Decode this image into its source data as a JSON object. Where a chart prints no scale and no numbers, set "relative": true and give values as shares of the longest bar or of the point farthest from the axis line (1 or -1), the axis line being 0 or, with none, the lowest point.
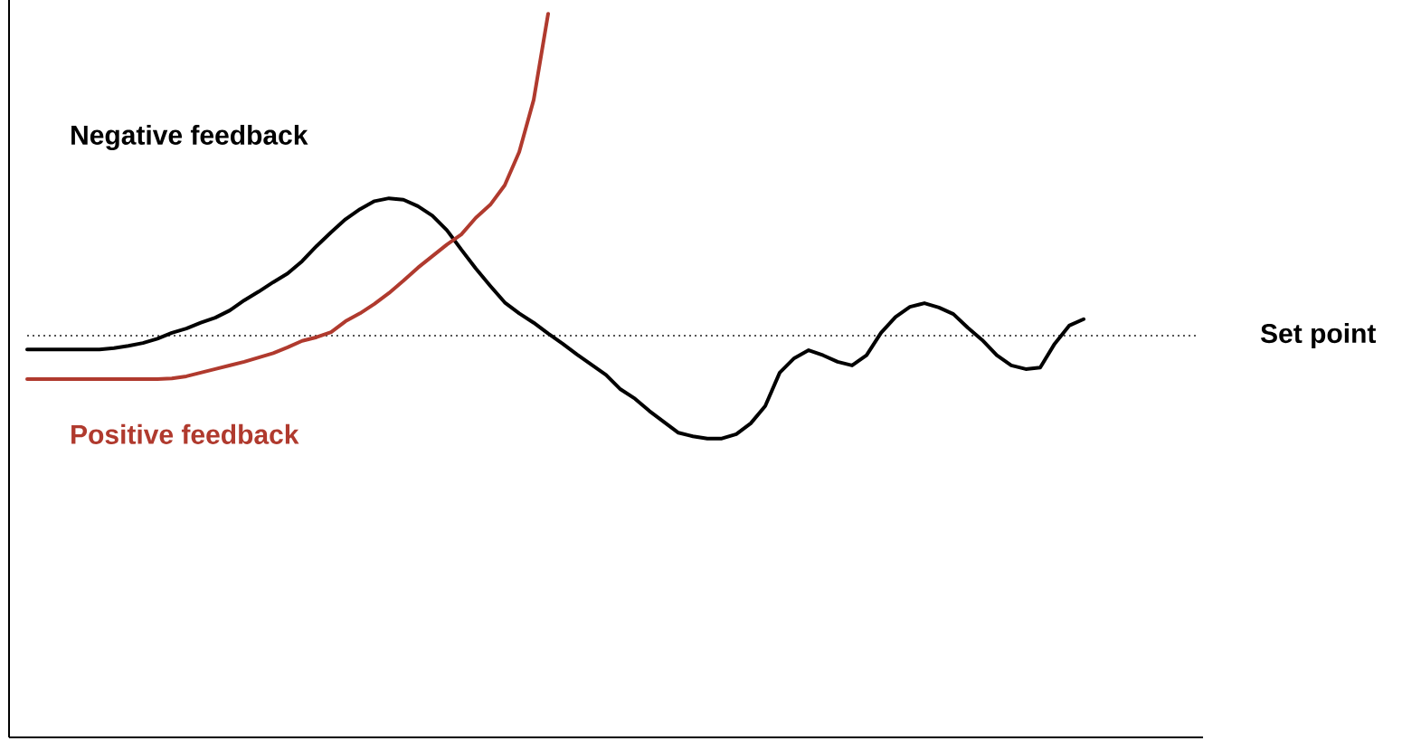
{
  "chart_data": {
    "type": "line",
    "relative": true,
    "legend": false,
    "marker": "none",
    "line_style": "solid",
    "categories": [
      null,
      null,
      null,
      null,
      null,
      null,
      null,
      null,
      null,
      null,
      null,
      null,
      null,
      null,
      null,
      null,
      null,
      null,
      null,
      null,
      null,
      null,
      null,
      null,
      null,
      null,
      null,
      null,
      null,
      null,
      null,
      null,
      null,
      null,
      null,
      null,
      null,
      null,
      null,
      null,
      null,
      null,
      null,
      null,
      null,
      null,
      null,
      null,
      null,
      null,
      null,
      null,
      null,
      null,
      null,
      null,
      null,
      null,
      null,
      null,
      null,
      null,
      null,
      null,
      null,
      null,
      null,
      null,
      null,
      null,
      null,
      null,
      null,
      null
    ],
    "series": [
      {
        "name": "Negative feedback",
        "color": "#000000",
        "values": [
          0.536,
          0.536,
          0.536,
          0.536,
          0.536,
          0.536,
          0.538,
          0.541,
          0.545,
          0.551,
          0.559,
          0.565,
          0.573,
          0.58,
          0.59,
          0.604,
          0.616,
          0.629,
          0.641,
          0.658,
          0.679,
          0.698,
          0.716,
          0.73,
          0.741,
          0.745,
          0.743,
          0.734,
          0.721,
          0.701,
          0.674,
          0.648,
          0.624,
          0.601,
          0.586,
          0.573,
          0.558,
          0.544,
          0.529,
          0.515,
          0.501,
          0.481,
          0.468,
          0.451,
          0.436,
          0.421,
          0.416,
          0.413,
          0.413,
          0.419,
          0.434,
          0.458,
          0.504,
          0.524,
          0.535,
          0.528,
          0.519,
          0.514,
          0.528,
          0.559,
          0.581,
          0.595,
          0.6,
          0.594,
          0.585,
          0.566,
          0.549,
          0.528,
          0.514,
          0.509,
          0.511,
          0.544,
          0.569,
          0.578
        ]
      },
      {
        "name": "Positive feedback",
        "color": "#b03a2e",
        "values": [
          0.495,
          0.495,
          0.495,
          0.495,
          0.495,
          0.495,
          0.495,
          0.495,
          0.495,
          0.495,
          0.496,
          0.499,
          0.504,
          0.509,
          0.514,
          0.519,
          0.525,
          0.531,
          0.539,
          0.548,
          0.553,
          0.56,
          0.575,
          0.586,
          0.599,
          0.614,
          0.631,
          0.649,
          0.665,
          0.681,
          0.695,
          0.718,
          0.736,
          0.763,
          0.809,
          0.881,
          1.0,
          null,
          null,
          null,
          null,
          null,
          null,
          null,
          null,
          null,
          null,
          null,
          null,
          null,
          null,
          null,
          null,
          null,
          null,
          null,
          null,
          null,
          null,
          null,
          null,
          null,
          null,
          null,
          null,
          null,
          null,
          null,
          null,
          null,
          null,
          null,
          null,
          null
        ]
      }
    ],
    "ref_lines": [
      {
        "axis": "y",
        "value": 0.555,
        "label": "Set point",
        "color": "#555555",
        "line_style": "dotted"
      }
    ]
  }
}
